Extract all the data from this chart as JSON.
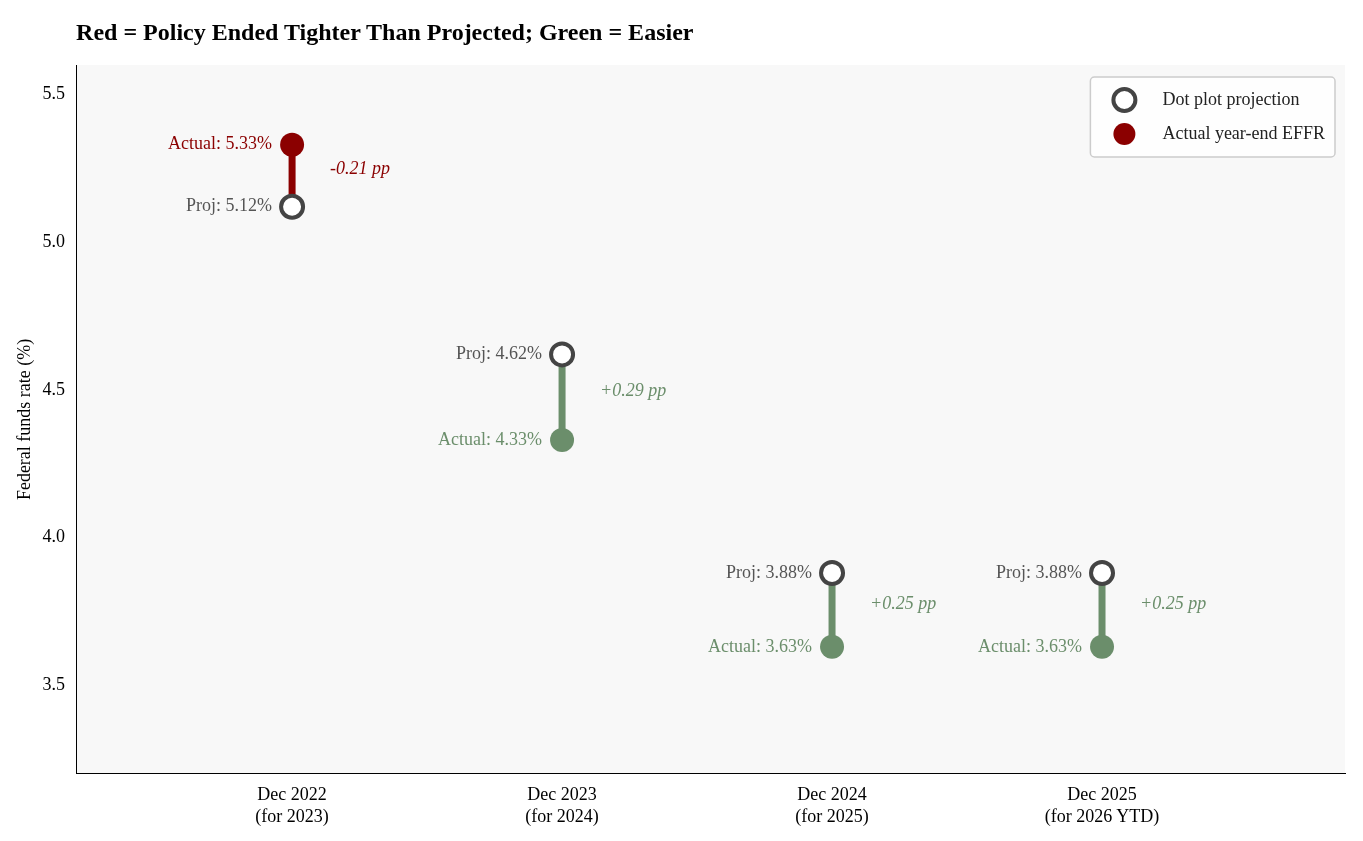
{
  "chart_data": {
    "type": "scatter",
    "title": "Red = Policy Ended Tighter Than Projected; Green = Easier",
    "ylabel": "Federal funds rate (%)",
    "categories": [
      "Dec 2022\n(for 2023)",
      "Dec 2023\n(for 2024)",
      "Dec 2024\n(for 2025)",
      "Dec 2025\n(for 2026 YTD)"
    ],
    "series": [
      {
        "name": "Dot plot projection",
        "color": "#444444",
        "marker": "circle",
        "values": [
          5.12,
          4.62,
          3.88,
          3.88
        ],
        "value_labels": [
          "Proj: 5.12%",
          "Proj: 4.62%",
          "Proj: 3.88%",
          "Proj: 3.88%"
        ]
      },
      {
        "name": "Actual year-end EFFR",
        "color": "#8b0000",
        "colors": [
          "#8b0000",
          "#6b8e6b",
          "#6b8e6b",
          "#6b8e6b"
        ],
        "marker": "circle",
        "values": [
          5.33,
          4.33,
          3.63,
          3.63
        ],
        "value_labels": [
          "Actual: 5.33%",
          "Actual: 4.33%",
          "Actual: 3.63%",
          "Actual: 3.63%"
        ]
      }
    ],
    "annotations": [
      "-0.21 pp",
      "+0.29 pp",
      "+0.25 pp",
      "+0.25 pp"
    ],
    "ylim": [
      3.2,
      5.6
    ],
    "yticks": [
      {
        "value": 3.5,
        "label": "3.5"
      },
      {
        "value": 4,
        "label": "4.0"
      },
      {
        "value": 4.5,
        "label": "4.5"
      },
      {
        "value": 5,
        "label": "5.0"
      },
      {
        "value": 5.5,
        "label": "5.5"
      }
    ],
    "grid": false,
    "legend": "top right"
  }
}
